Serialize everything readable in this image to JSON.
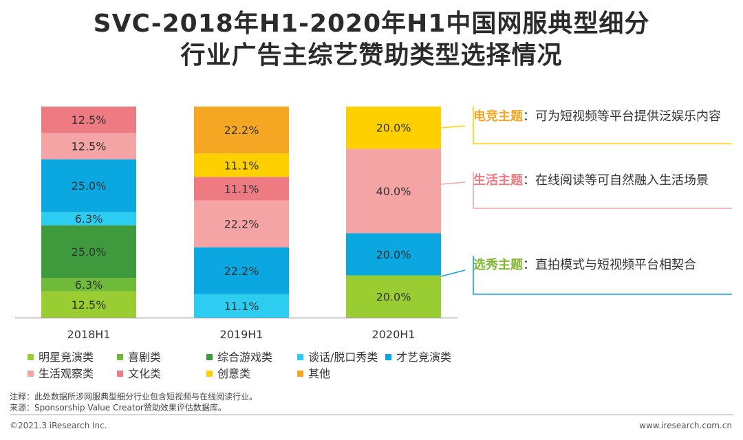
{
  "title": {
    "line1": "SVC-2018年H1-2020年H1中国网服典型细分",
    "line2": "行业广告主综艺赞助类型选择情况"
  },
  "chart_data": {
    "type": "bar",
    "stacked": true,
    "normalized": true,
    "categories": [
      "2018H1",
      "2019H1",
      "2020H1"
    ],
    "ylim": [
      0,
      100
    ],
    "grid": false,
    "legend_position": "bottom",
    "series": [
      {
        "name": "明星竞演类",
        "color": "#9ACD32",
        "values": [
          12.5,
          0,
          20.0
        ],
        "labels": [
          "12.5%",
          "",
          "20.0%"
        ]
      },
      {
        "name": "喜剧类",
        "color": "#6FBA3A",
        "values": [
          6.3,
          0,
          0
        ],
        "labels": [
          "6.3%",
          "",
          ""
        ]
      },
      {
        "name": "综合游戏类",
        "color": "#3F9A3E",
        "values": [
          25.0,
          0,
          0
        ],
        "labels": [
          "25.0%",
          "",
          ""
        ]
      },
      {
        "name": "谈话/脱口秀类",
        "color": "#2DCDF2",
        "values": [
          6.3,
          11.1,
          0
        ],
        "labels": [
          "6.3%",
          "11.1%",
          ""
        ]
      },
      {
        "name": "才艺竞演类",
        "color": "#0AA7E1",
        "values": [
          25.0,
          22.2,
          20.0
        ],
        "labels": [
          "25.0%",
          "22.2%",
          "20.0%"
        ]
      },
      {
        "name": "生活观察类",
        "color": "#F4A4A4",
        "values": [
          12.5,
          22.2,
          40.0
        ],
        "labels": [
          "12.5%",
          "22.2%",
          "40.0%"
        ]
      },
      {
        "name": "文化类",
        "color": "#EE7A82",
        "values": [
          12.5,
          11.1,
          0
        ],
        "labels": [
          "12.5%",
          "11.1%",
          ""
        ]
      },
      {
        "name": "创意类",
        "color": "#FFD000",
        "values": [
          0,
          11.1,
          20.0
        ],
        "labels": [
          "",
          "11.1%",
          "20.0%"
        ]
      },
      {
        "name": "其他",
        "color": "#F5A623",
        "values": [
          0,
          22.2,
          0
        ],
        "labels": [
          "",
          "22.2%",
          ""
        ]
      }
    ]
  },
  "annotations": [
    {
      "key": "电竞主题",
      "key_color": "#F5A623",
      "text": "：可为短视频等平台提供泛娱乐内容",
      "line_color": "#FFD000"
    },
    {
      "key": "生活主题",
      "key_color": "#EE7A82",
      "text": "：在线阅读等可自然融入生活场景",
      "line_color": "#F4A4A4"
    },
    {
      "key": "选秀主题",
      "key_color": "#7FB72F",
      "text": "：直拍模式与短视频平台相契合",
      "line_color": "#0AA7E1"
    }
  ],
  "note": {
    "line1": "注释：此处数据所涉网服典型细分行业包含短视频与在线阅读行业。",
    "line2": "来源：Sponsorship Value Creator赞助效果评估数据库。"
  },
  "footer": {
    "left": "©2021.3 iResearch Inc.",
    "right": "www.iresearch.com.cn"
  }
}
